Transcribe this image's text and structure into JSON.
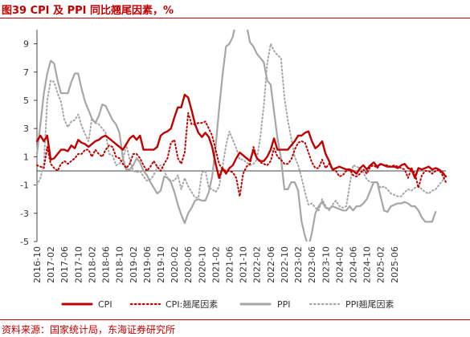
{
  "title": "图39  CPI 及 PPI 同比翘尾因素，%",
  "source": "资料来源：国家统计局，东海证券研究所",
  "colors": {
    "cpi": "#c00000",
    "ppi": "#a6a6a6",
    "title": "#c00000"
  },
  "chart_data": {
    "type": "line",
    "title": "",
    "xlabel": "",
    "ylabel": "",
    "ylim": [
      -5,
      10
    ],
    "yticks": [
      -5,
      -3,
      -1,
      1,
      3,
      5,
      7,
      9
    ],
    "grid": false,
    "legend": "bottom",
    "xticks": [
      "2016-10",
      "2017-02",
      "2017-06",
      "2017-10",
      "2018-02",
      "2018-06",
      "2018-10",
      "2019-02",
      "2019-06",
      "2019-10",
      "2020-02",
      "2020-06",
      "2020-10",
      "2021-02",
      "2021-06",
      "2021-10",
      "2022-02",
      "2022-06",
      "2022-10",
      "2023-02",
      "2023-06",
      "2023-10",
      "2024-02",
      "2024-06",
      "2024-10",
      "2025-02",
      "2025-06"
    ],
    "start": "2016-10",
    "series": [
      {
        "name": "CPI",
        "style": "solid",
        "color": "#c00000",
        "values": [
          2.1,
          2.5,
          2.1,
          2.5,
          0.8,
          0.9,
          1.2,
          1.5,
          1.5,
          1.4,
          1.8,
          1.6,
          2.2,
          2.0,
          1.9,
          1.7,
          1.9,
          2.1,
          2.2,
          2.4,
          2.5,
          2.3,
          2.1,
          1.9,
          1.7,
          1.5,
          1.9,
          2.3,
          2.5,
          2.2,
          2.5,
          1.5,
          1.5,
          1.5,
          1.5,
          1.7,
          2.5,
          2.7,
          2.8,
          3.0,
          3.8,
          4.5,
          4.5,
          5.4,
          5.2,
          4.3,
          3.3,
          2.7,
          2.4,
          2.7,
          2.4,
          1.7,
          0.5,
          -0.5,
          0.2,
          -0.2,
          0.2,
          0.4,
          0.9,
          1.3,
          1.1,
          0.9,
          0.7,
          1.5,
          0.9,
          0.7,
          0.7,
          1.0,
          1.5,
          2.3,
          1.5,
          1.5,
          1.5,
          1.5,
          1.8,
          2.1,
          2.5,
          2.5,
          2.7,
          2.8,
          2.1,
          1.6,
          1.8,
          2.1,
          1.2,
          0.7,
          0.1,
          0.2,
          0.3,
          0.2,
          0.1,
          0.1,
          0.0,
          -0.2,
          0.2,
          0.4,
          0.1,
          0.4,
          0.6,
          0.3,
          0.5,
          0.4,
          0.3,
          0.3,
          0.3,
          0.2,
          0.4,
          0.5,
          0.2,
          0.1,
          -0.5,
          0.2,
          0.1,
          0.2,
          0.3,
          0.1,
          0.2,
          0.1,
          -0.1,
          -0.4
        ]
      },
      {
        "name": "CPI:翘尾因素",
        "style": "dotted",
        "color": "#c00000",
        "values": [
          0.4,
          0.3,
          0.2,
          1.7,
          0.5,
          0.2,
          0.0,
          0.5,
          0.7,
          0.5,
          0.7,
          0.9,
          1.2,
          1.2,
          1.5,
          1.5,
          1.0,
          1.5,
          1.2,
          1.0,
          1.5,
          1.8,
          1.7,
          1.0,
          0.9,
          0.5,
          0.2,
          0.5,
          1.2,
          1.2,
          0.9,
          0.4,
          0.0,
          0.3,
          0.7,
          0.3,
          0.0,
          0.5,
          0.9,
          2.0,
          2.2,
          0.9,
          0.5,
          1.3,
          4.1,
          3.3,
          3.3,
          3.4,
          3.4,
          3.5,
          3.0,
          2.5,
          1.5,
          0.5,
          0.1,
          0.0,
          0.0,
          -0.1,
          -0.5,
          -1.8,
          -0.2,
          0.3,
          0.5,
          1.7,
          0.9,
          0.6,
          0.5,
          0.4,
          0.7,
          1.6,
          1.0,
          0.8,
          0.5,
          0.5,
          0.8,
          1.5,
          2.0,
          2.1,
          2.0,
          1.3,
          0.6,
          0.2,
          0.2,
          0.8,
          0.2,
          0.5,
          0.1,
          0.0,
          -0.4,
          -0.3,
          0.0,
          0.1,
          -0.3,
          -0.4,
          -0.2,
          0.1,
          -0.2,
          0.3,
          0.4,
          0.2,
          0.5,
          0.4,
          0.4,
          0.3,
          0.4,
          0.3,
          0.2,
          0.1,
          -0.5,
          0.2,
          -0.2,
          -1.2,
          -0.3,
          0.0,
          0.0,
          -0.2,
          0.0,
          0.1,
          -0.3,
          -0.8
        ]
      },
      {
        "name": "PPI",
        "style": "solid",
        "color": "#a6a6a6",
        "values": [
          1.2,
          3.3,
          5.5,
          6.9,
          7.8,
          7.6,
          6.4,
          5.5,
          5.5,
          5.5,
          6.3,
          6.9,
          6.9,
          5.8,
          4.9,
          4.3,
          3.7,
          3.4,
          3.9,
          4.7,
          4.6,
          4.1,
          3.6,
          3.3,
          2.7,
          0.9,
          0.1,
          0.1,
          0.4,
          0.9,
          0.6,
          0.0,
          -0.3,
          -0.8,
          -1.2,
          -1.6,
          -1.4,
          -0.4,
          -0.5,
          -0.8,
          -1.5,
          -2.4,
          -3.1,
          -3.7,
          -3.0,
          -2.6,
          -2.1,
          -2.0,
          -2.1,
          -2.1,
          -1.5,
          -0.4,
          1.7,
          4.4,
          6.8,
          8.8,
          9.0,
          9.5,
          10.7,
          13.5,
          12.9,
          10.3,
          9.1,
          8.8,
          8.3,
          8.0,
          7.7,
          6.4,
          6.1,
          4.2,
          2.3,
          0.9,
          -1.3,
          -1.3,
          -0.8,
          -0.8,
          -1.4,
          -3.6,
          -4.6,
          -5.4,
          -4.4,
          -3.0,
          -2.5,
          -2.2,
          -2.6,
          -2.7,
          -2.5,
          -2.6,
          -2.7,
          -2.8,
          -2.8,
          -2.5,
          -2.8,
          -2.5,
          -2.5,
          -2.3,
          -2.0,
          -1.4,
          -0.8,
          -0.8,
          -1.8,
          -2.8,
          -2.9,
          -2.5,
          -2.4,
          -2.3,
          -2.3,
          -2.2,
          -2.3,
          -2.5,
          -2.5,
          -2.8,
          -3.3,
          -3.6,
          -3.6,
          -3.6,
          -2.9
        ]
      },
      {
        "name": "PPI翘尾因素",
        "style": "dotted",
        "color": "#a6a6a6",
        "values": [
          -1.0,
          -0.5,
          0.5,
          5.0,
          6.4,
          6.3,
          5.5,
          4.9,
          3.6,
          3.1,
          3.5,
          3.6,
          4.0,
          3.2,
          2.6,
          2.1,
          3.7,
          3.4,
          3.3,
          3.0,
          2.7,
          1.2,
          1.1,
          0.4,
          0.5,
          0.8,
          1.8,
          0.8,
          0.0,
          -0.1,
          0.0,
          -0.4,
          -0.7,
          -0.6,
          -0.3,
          0.3,
          0.4,
          0.0,
          -0.5,
          -0.7,
          -0.7,
          -0.3,
          -1.3,
          -0.5,
          -1.1,
          -1.5,
          -1.9,
          -1.9,
          -0.1,
          0.0,
          -1.2,
          -1.3,
          -1.5,
          -1.1,
          0.3,
          1.8,
          2.8,
          2.2,
          1.6,
          0.8,
          0.8,
          0.6,
          0.4,
          0.5,
          0.8,
          2.4,
          4.6,
          7.6,
          9.0,
          8.5,
          8.2,
          8.0,
          5.2,
          3.6,
          2.3,
          1.0,
          0.4,
          -0.5,
          -1.5,
          -2.4,
          -2.3,
          -2.6,
          -2.8,
          -2.0,
          -2.5,
          -2.8,
          -2.4,
          -2.1,
          -2.5,
          -2.6,
          -2.5,
          -1.0,
          0.4,
          0.3,
          0.2,
          -0.1,
          -0.6,
          -0.8,
          -0.8,
          -0.8,
          -1.2,
          -1.1,
          -1.3,
          -1.6,
          -1.7,
          -1.8,
          -1.8,
          -1.5,
          -1.3,
          -1.4,
          -1.2,
          -1.1,
          -1.3,
          -1.5,
          -1.6,
          -1.4,
          -1.3,
          -1.0,
          -0.7,
          -0.3
        ]
      }
    ]
  }
}
